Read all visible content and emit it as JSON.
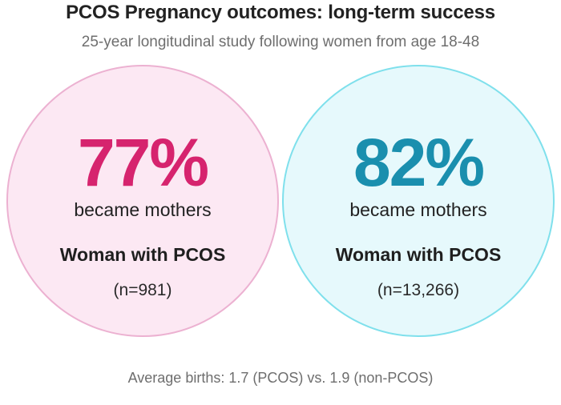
{
  "header": {
    "title": "PCOS Pregnancy outcomes: long-term success",
    "subtitle": "25-year longitudinal study following women from age 18-48"
  },
  "chart_data": {
    "type": "table",
    "title": "PCOS Pregnancy outcomes: long-term success",
    "subtitle": "25-year longitudinal study following women from age 18-48",
    "groups": [
      {
        "percent_label": "77%",
        "value": 77,
        "caption": "became mothers",
        "group_label": "Woman with PCOS",
        "n_label": "(n=981)",
        "n": 981,
        "fill_color": "#fce8f3",
        "border_color": "#ecb1d1",
        "accent_color": "#d6246e"
      },
      {
        "percent_label": "82%",
        "value": 82,
        "caption": "became mothers",
        "group_label": "Woman with PCOS",
        "n_label": "(n=13,266)",
        "n": 13266,
        "fill_color": "#e6f9fc",
        "border_color": "#7fe0ec",
        "accent_color": "#1a8fae"
      }
    ],
    "footnote": "Average births: 1.7 (PCOS) vs. 1.9 (non-PCOS)"
  }
}
